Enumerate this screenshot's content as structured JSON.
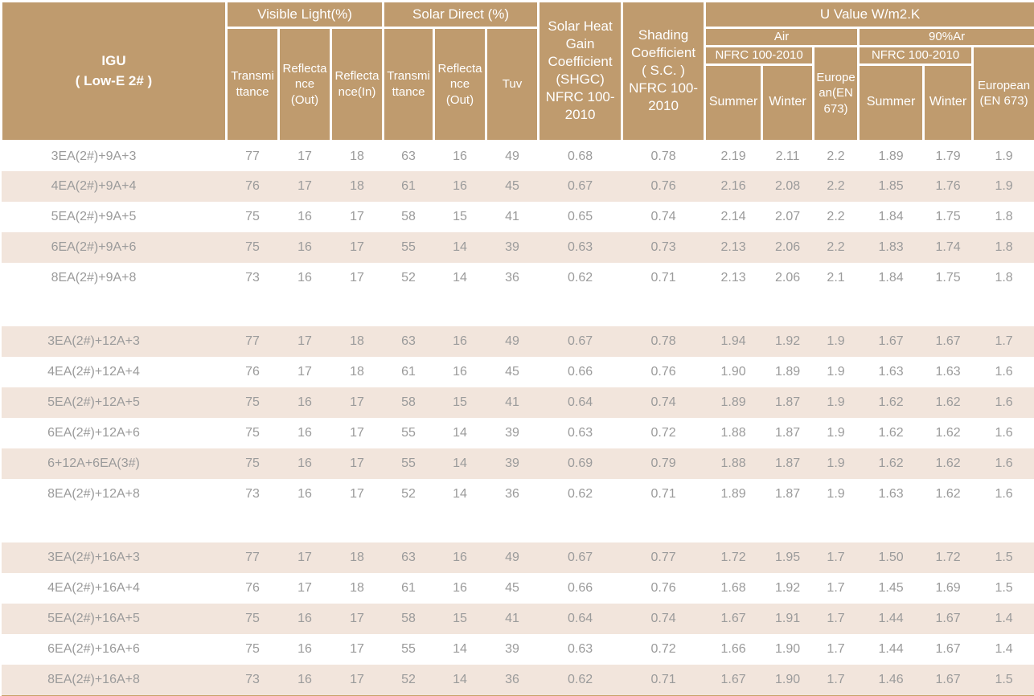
{
  "colors": {
    "header_bg": "#BF9B6E",
    "row_shaded": "#F2E5DC",
    "data_text": "#9B9B9B",
    "bottom_rule": "#C9A268"
  },
  "header": {
    "igu": "IGU\n( Low-E 2# )",
    "visible_light": "Visible Light(%)",
    "solar_direct": "Solar Direct (%)",
    "vl_transmittance": "Transmi\nttance",
    "vl_reflectance_out": "Reflecta\nnce\n(Out)",
    "vl_reflectance_in": "Reflecta\nnce(In)",
    "sd_transmittance": "Transmi\nttance",
    "sd_reflectance_out": "Reflecta\nnce\n(Out)",
    "tuv": "Tuv",
    "shgc": "Solar Heat\nGain\nCoefficient\n(SHGC)\nNFRC 100-\n2010",
    "shading": "Shading\nCoefficient\n( S.C. )\nNFRC 100-\n2010",
    "u_value": "U Value W/m2.K",
    "air": "Air",
    "argon": "90%Ar",
    "nfrc_air": "NFRC 100-2010",
    "european_air": "Europe\nan(EN\n673)",
    "air_summer": "Summer",
    "air_winter": "Winter",
    "nfrc_argon": "NFRC 100-2010",
    "european_argon": "European\n(EN 673)",
    "argon_summer": "Summer",
    "argon_winter": "Winter"
  },
  "groups": [
    {
      "first_row_shaded": false,
      "rows": [
        {
          "label": "3EA(2#)+9A+3",
          "values": [
            "77",
            "17",
            "18",
            "63",
            "16",
            "49",
            "0.68",
            "0.78",
            "2.19",
            "2.11",
            "2.2",
            "1.89",
            "1.79",
            "1.9"
          ]
        },
        {
          "label": "4EA(2#)+9A+4",
          "values": [
            "76",
            "17",
            "18",
            "61",
            "16",
            "45",
            "0.67",
            "0.76",
            "2.16",
            "2.08",
            "2.2",
            "1.85",
            "1.76",
            "1.9"
          ]
        },
        {
          "label": "5EA(2#)+9A+5",
          "values": [
            "75",
            "16",
            "17",
            "58",
            "15",
            "41",
            "0.65",
            "0.74",
            "2.14",
            "2.07",
            "2.2",
            "1.84",
            "1.75",
            "1.8"
          ]
        },
        {
          "label": "6EA(2#)+9A+6",
          "values": [
            "75",
            "16",
            "17",
            "55",
            "14",
            "39",
            "0.63",
            "0.73",
            "2.13",
            "2.06",
            "2.2",
            "1.83",
            "1.74",
            "1.8"
          ]
        },
        {
          "label": "8EA(2#)+9A+8",
          "values": [
            "73",
            "16",
            "17",
            "52",
            "14",
            "36",
            "0.62",
            "0.71",
            "2.13",
            "2.06",
            "2.1",
            "1.84",
            "1.75",
            "1.8"
          ]
        }
      ]
    },
    {
      "first_row_shaded": true,
      "rows": [
        {
          "label": "3EA(2#)+12A+3",
          "values": [
            "77",
            "17",
            "18",
            "63",
            "16",
            "49",
            "0.67",
            "0.78",
            "1.94",
            "1.92",
            "1.9",
            "1.67",
            "1.67",
            "1.7"
          ]
        },
        {
          "label": "4EA(2#)+12A+4",
          "values": [
            "76",
            "17",
            "18",
            "61",
            "16",
            "45",
            "0.66",
            "0.76",
            "1.90",
            "1.89",
            "1.9",
            "1.63",
            "1.63",
            "1.6"
          ]
        },
        {
          "label": "5EA(2#)+12A+5",
          "values": [
            "75",
            "16",
            "17",
            "58",
            "15",
            "41",
            "0.64",
            "0.74",
            "1.89",
            "1.87",
            "1.9",
            "1.62",
            "1.62",
            "1.6"
          ]
        },
        {
          "label": "6EA(2#)+12A+6",
          "values": [
            "75",
            "16",
            "17",
            "55",
            "14",
            "39",
            "0.63",
            "0.72",
            "1.88",
            "1.87",
            "1.9",
            "1.62",
            "1.62",
            "1.6"
          ]
        },
        {
          "label": "6+12A+6EA(3#)",
          "values": [
            "75",
            "16",
            "17",
            "55",
            "14",
            "39",
            "0.69",
            "0.79",
            "1.88",
            "1.87",
            "1.9",
            "1.62",
            "1.62",
            "1.6"
          ]
        },
        {
          "label": "8EA(2#)+12A+8",
          "values": [
            "73",
            "16",
            "17",
            "52",
            "14",
            "36",
            "0.62",
            "0.71",
            "1.89",
            "1.87",
            "1.9",
            "1.63",
            "1.62",
            "1.6"
          ]
        }
      ]
    },
    {
      "first_row_shaded": true,
      "rows": [
        {
          "label": "3EA(2#)+16A+3",
          "values": [
            "77",
            "17",
            "18",
            "63",
            "16",
            "49",
            "0.67",
            "0.77",
            "1.72",
            "1.95",
            "1.7",
            "1.50",
            "1.72",
            "1.5"
          ]
        },
        {
          "label": "4EA(2#)+16A+4",
          "values": [
            "76",
            "17",
            "18",
            "61",
            "16",
            "45",
            "0.66",
            "0.76",
            "1.68",
            "1.92",
            "1.7",
            "1.45",
            "1.69",
            "1.5"
          ]
        },
        {
          "label": "5EA(2#)+16A+5",
          "values": [
            "75",
            "16",
            "17",
            "58",
            "15",
            "41",
            "0.64",
            "0.74",
            "1.67",
            "1.91",
            "1.7",
            "1.44",
            "1.67",
            "1.4"
          ]
        },
        {
          "label": "6EA(2#)+16A+6",
          "values": [
            "75",
            "16",
            "17",
            "55",
            "14",
            "39",
            "0.63",
            "0.72",
            "1.66",
            "1.90",
            "1.7",
            "1.44",
            "1.67",
            "1.4"
          ]
        },
        {
          "label": "8EA(2#)+16A+8",
          "values": [
            "73",
            "16",
            "17",
            "52",
            "14",
            "36",
            "0.62",
            "0.71",
            "1.67",
            "1.90",
            "1.7",
            "1.46",
            "1.67",
            "1.5"
          ]
        }
      ]
    }
  ]
}
